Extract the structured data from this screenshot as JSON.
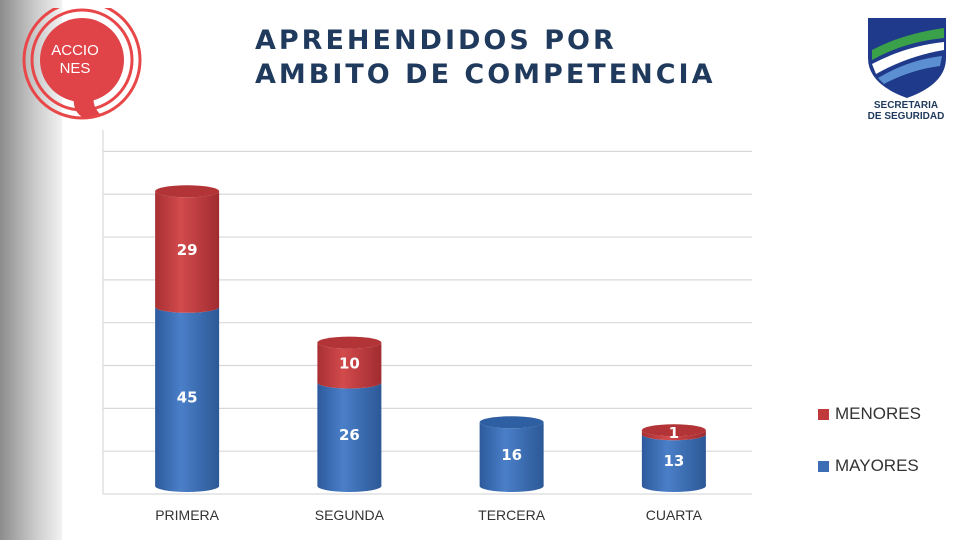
{
  "header": {
    "title_line1": "APREHENDIDOS POR",
    "title_line2": "AMBITO DE COMPETENCIA",
    "left_logo_text": "ACCIO\nNES",
    "right_logo_line1": "SECRETARIA",
    "right_logo_line2": "DE SEGURIDAD"
  },
  "colors": {
    "menores": "#c0393b",
    "mayores": "#3d6db5",
    "title": "#1f3a5c"
  },
  "chart_data": {
    "type": "bar",
    "stacked": true,
    "style": "3d-cylinder",
    "categories": [
      "PRIMERA",
      "SEGUNDA",
      "TERCERA",
      "CUARTA"
    ],
    "series": [
      {
        "name": "MAYORES",
        "values": [
          45,
          26,
          16,
          13
        ],
        "labels": [
          "45",
          "26",
          "16",
          "13"
        ]
      },
      {
        "name": "MENORES",
        "values": [
          29,
          10,
          0,
          1
        ],
        "labels": [
          "29",
          "10",
          "",
          "1"
        ]
      }
    ],
    "ylim": [
      0,
      85
    ],
    "grid": true,
    "legend_position": "right"
  }
}
